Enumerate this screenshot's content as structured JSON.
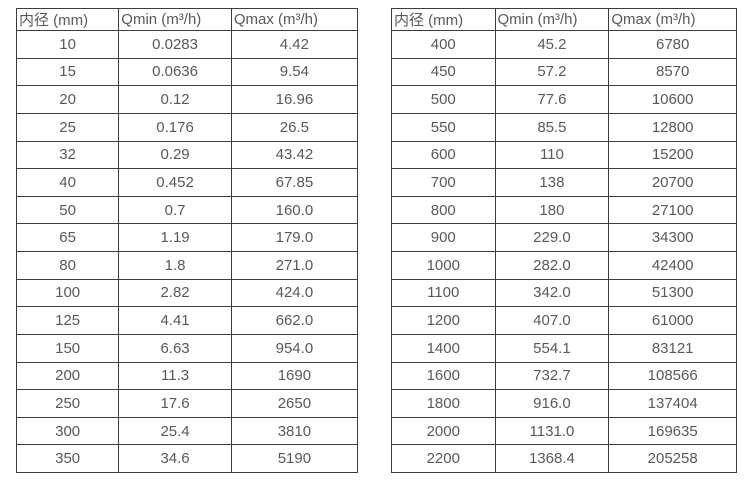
{
  "colors": {
    "background": "#ffffff",
    "border": "#3c3c3c",
    "text": "#595959"
  },
  "tables": [
    {
      "headers": [
        "内径 (mm)",
        "Qmin (m³/h)",
        "Qmax (m³/h)"
      ],
      "rows": [
        [
          "10",
          "0.0283",
          "4.42"
        ],
        [
          "15",
          "0.0636",
          "9.54"
        ],
        [
          "20",
          "0.12",
          "16.96"
        ],
        [
          "25",
          "0.176",
          "26.5"
        ],
        [
          "32",
          "0.29",
          "43.42"
        ],
        [
          "40",
          "0.452",
          "67.85"
        ],
        [
          "50",
          "0.7",
          "160.0"
        ],
        [
          "65",
          "1.19",
          "179.0"
        ],
        [
          "80",
          "1.8",
          "271.0"
        ],
        [
          "100",
          "2.82",
          "424.0"
        ],
        [
          "125",
          "4.41",
          "662.0"
        ],
        [
          "150",
          "6.63",
          "954.0"
        ],
        [
          "200",
          "11.3",
          "1690"
        ],
        [
          "250",
          "17.6",
          "2650"
        ],
        [
          "300",
          "25.4",
          "3810"
        ],
        [
          "350",
          "34.6",
          "5190"
        ]
      ]
    },
    {
      "headers": [
        "内径 (mm)",
        "Qmin (m³/h)",
        "Qmax (m³/h)"
      ],
      "rows": [
        [
          "400",
          "45.2",
          "6780"
        ],
        [
          "450",
          "57.2",
          "8570"
        ],
        [
          "500",
          "77.6",
          "10600"
        ],
        [
          "550",
          "85.5",
          "12800"
        ],
        [
          "600",
          "110",
          "15200"
        ],
        [
          "700",
          "138",
          "20700"
        ],
        [
          "800",
          "180",
          "27100"
        ],
        [
          "900",
          "229.0",
          "34300"
        ],
        [
          "1000",
          "282.0",
          "42400"
        ],
        [
          "1100",
          "342.0",
          "51300"
        ],
        [
          "1200",
          "407.0",
          "61000"
        ],
        [
          "1400",
          "554.1",
          "83121"
        ],
        [
          "1600",
          "732.7",
          "108566"
        ],
        [
          "1800",
          "916.0",
          "137404"
        ],
        [
          "2000",
          "1131.0",
          "169635"
        ],
        [
          "2200",
          "1368.4",
          "205258"
        ]
      ]
    }
  ]
}
